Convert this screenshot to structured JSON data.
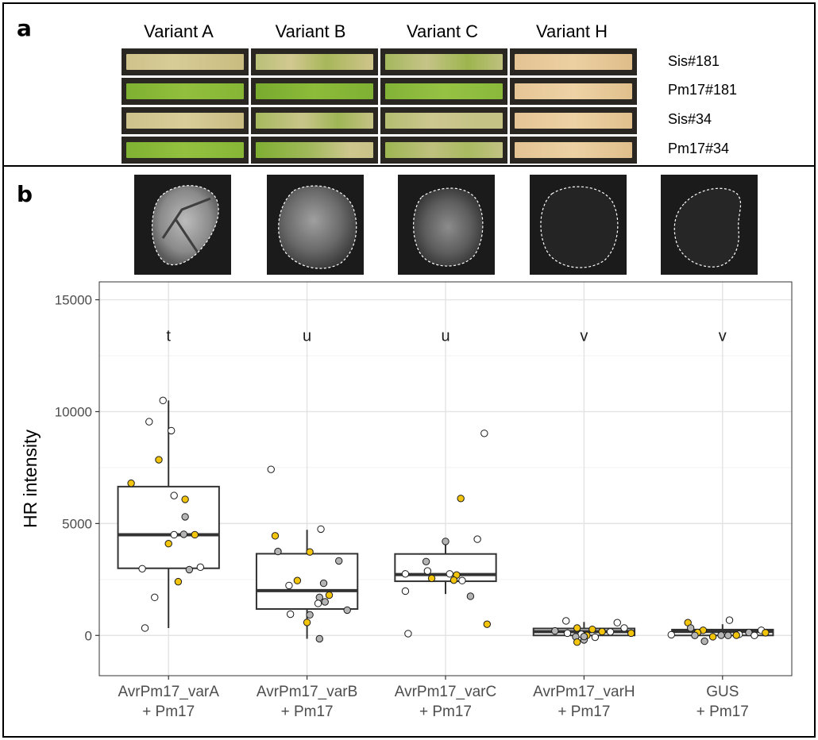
{
  "panel_a": {
    "label": "a",
    "columns": [
      "Variant A",
      "Variant B",
      "Variant C",
      "Variant H"
    ],
    "rows": [
      "Sis#181",
      "Pm17#181",
      "Sis#34",
      "Pm17#34"
    ]
  },
  "panel_b": {
    "label": "b"
  },
  "chart_data": {
    "type": "box",
    "ylabel": "HR intensity",
    "ylim": [
      -1800,
      15800
    ],
    "yticks": [
      0,
      5000,
      10000,
      15000
    ],
    "grid": true,
    "categories": [
      {
        "line1": "AvrPm17_varA",
        "line2": "+ Pm17"
      },
      {
        "line1": "AvrPm17_varB",
        "line2": "+ Pm17"
      },
      {
        "line1": "AvrPm17_varC",
        "line2": "+ Pm17"
      },
      {
        "line1": "AvrPm17_varH",
        "line2": "+ Pm17"
      },
      {
        "line1": "GUS",
        "line2": "+ Pm17"
      }
    ],
    "significance_letters": [
      "t",
      "u",
      "u",
      "v",
      "v"
    ],
    "boxes": [
      {
        "q1": 3000,
        "median": 4500,
        "q3": 6650,
        "whisker_low": 330,
        "whisker_high": 10500
      },
      {
        "q1": 1180,
        "median": 2000,
        "q3": 3650,
        "whisker_low": -150,
        "whisker_high": 4720
      },
      {
        "q1": 2420,
        "median": 2720,
        "q3": 3640,
        "whisker_low": 1850,
        "whisker_high": 4150
      },
      {
        "q1": 0,
        "median": 170,
        "q3": 310,
        "whisker_low": -300,
        "whisker_high": 600
      },
      {
        "q1": 0,
        "median": 180,
        "q3": 260,
        "whisker_low": -100,
        "whisker_high": 500
      }
    ],
    "point_colors": {
      "white": "#ffffff",
      "grey": "#b4b4b4",
      "yellow": "#f2c40c"
    },
    "points": [
      [
        {
          "dx": -0.04,
          "y": 10500,
          "c": "white"
        },
        {
          "dx": -0.14,
          "y": 9550,
          "c": "white"
        },
        {
          "dx": 0.02,
          "y": 9150,
          "c": "white"
        },
        {
          "dx": -0.07,
          "y": 7850,
          "c": "yellow"
        },
        {
          "dx": -0.27,
          "y": 6800,
          "c": "yellow"
        },
        {
          "dx": 0.04,
          "y": 6250,
          "c": "white"
        },
        {
          "dx": 0.12,
          "y": 6080,
          "c": "yellow"
        },
        {
          "dx": 0.12,
          "y": 5300,
          "c": "grey"
        },
        {
          "dx": 0.11,
          "y": 4520,
          "c": "grey"
        },
        {
          "dx": 0.04,
          "y": 4500,
          "c": "white"
        },
        {
          "dx": 0.19,
          "y": 4500,
          "c": "yellow"
        },
        {
          "dx": 0.0,
          "y": 4100,
          "c": "yellow"
        },
        {
          "dx": 0.23,
          "y": 3050,
          "c": "white"
        },
        {
          "dx": -0.19,
          "y": 2980,
          "c": "white"
        },
        {
          "dx": 0.15,
          "y": 2940,
          "c": "grey"
        },
        {
          "dx": 0.07,
          "y": 2400,
          "c": "yellow"
        },
        {
          "dx": -0.1,
          "y": 1700,
          "c": "white"
        },
        {
          "dx": -0.17,
          "y": 330,
          "c": "white"
        }
      ],
      [
        {
          "dx": -0.26,
          "y": 7420,
          "c": "white"
        },
        {
          "dx": 0.1,
          "y": 4750,
          "c": "white"
        },
        {
          "dx": -0.23,
          "y": 4450,
          "c": "yellow"
        },
        {
          "dx": -0.21,
          "y": 3750,
          "c": "grey"
        },
        {
          "dx": 0.02,
          "y": 3730,
          "c": "yellow"
        },
        {
          "dx": 0.23,
          "y": 3330,
          "c": "grey"
        },
        {
          "dx": -0.07,
          "y": 2450,
          "c": "yellow"
        },
        {
          "dx": 0.12,
          "y": 2330,
          "c": "grey"
        },
        {
          "dx": -0.13,
          "y": 2230,
          "c": "white"
        },
        {
          "dx": 0.16,
          "y": 1800,
          "c": "yellow"
        },
        {
          "dx": 0.09,
          "y": 1700,
          "c": "grey"
        },
        {
          "dx": 0.13,
          "y": 1500,
          "c": "grey"
        },
        {
          "dx": 0.08,
          "y": 1430,
          "c": "white"
        },
        {
          "dx": 0.29,
          "y": 1130,
          "c": "grey"
        },
        {
          "dx": -0.12,
          "y": 950,
          "c": "white"
        },
        {
          "dx": 0.02,
          "y": 920,
          "c": "grey"
        },
        {
          "dx": 0.0,
          "y": 580,
          "c": "yellow"
        },
        {
          "dx": 0.09,
          "y": -150,
          "c": "grey"
        }
      ],
      [
        {
          "dx": 0.28,
          "y": 9030,
          "c": "white"
        },
        {
          "dx": 0.11,
          "y": 6120,
          "c": "yellow"
        },
        {
          "dx": 0.23,
          "y": 4300,
          "c": "white"
        },
        {
          "dx": 0.0,
          "y": 4200,
          "c": "grey"
        },
        {
          "dx": -0.14,
          "y": 3300,
          "c": "grey"
        },
        {
          "dx": -0.13,
          "y": 2880,
          "c": "white"
        },
        {
          "dx": -0.29,
          "y": 2750,
          "c": "white"
        },
        {
          "dx": 0.03,
          "y": 2750,
          "c": "white"
        },
        {
          "dx": 0.08,
          "y": 2700,
          "c": "yellow"
        },
        {
          "dx": -0.1,
          "y": 2550,
          "c": "yellow"
        },
        {
          "dx": 0.06,
          "y": 2470,
          "c": "yellow"
        },
        {
          "dx": 0.12,
          "y": 2450,
          "c": "white"
        },
        {
          "dx": -0.29,
          "y": 1980,
          "c": "white"
        },
        {
          "dx": 0.18,
          "y": 1750,
          "c": "grey"
        },
        {
          "dx": 0.3,
          "y": 500,
          "c": "yellow"
        },
        {
          "dx": -0.27,
          "y": 80,
          "c": "white"
        }
      ],
      [
        {
          "dx": -0.13,
          "y": 650,
          "c": "white"
        },
        {
          "dx": 0.24,
          "y": 570,
          "c": "white"
        },
        {
          "dx": 0.29,
          "y": 330,
          "c": "white"
        },
        {
          "dx": -0.05,
          "y": 330,
          "c": "yellow"
        },
        {
          "dx": 0.06,
          "y": 270,
          "c": "yellow"
        },
        {
          "dx": -0.21,
          "y": 200,
          "c": "grey"
        },
        {
          "dx": 0.13,
          "y": 170,
          "c": "yellow"
        },
        {
          "dx": 0.19,
          "y": 160,
          "c": "white"
        },
        {
          "dx": -0.12,
          "y": 100,
          "c": "white"
        },
        {
          "dx": 0.34,
          "y": 100,
          "c": "yellow"
        },
        {
          "dx": -0.02,
          "y": 50,
          "c": "white"
        },
        {
          "dx": 0.02,
          "y": 0,
          "c": "yellow"
        },
        {
          "dx": -0.06,
          "y": -60,
          "c": "grey"
        },
        {
          "dx": 0.08,
          "y": -80,
          "c": "white"
        },
        {
          "dx": 0.0,
          "y": -200,
          "c": "grey"
        },
        {
          "dx": -0.05,
          "y": -300,
          "c": "yellow"
        },
        {
          "dx": 0.0,
          "y": -50,
          "c": "grey"
        }
      ],
      [
        {
          "dx": 0.05,
          "y": 680,
          "c": "white"
        },
        {
          "dx": -0.25,
          "y": 570,
          "c": "yellow"
        },
        {
          "dx": -0.23,
          "y": 330,
          "c": "grey"
        },
        {
          "dx": -0.14,
          "y": 230,
          "c": "yellow"
        },
        {
          "dx": 0.28,
          "y": 230,
          "c": "white"
        },
        {
          "dx": -0.18,
          "y": 130,
          "c": "yellow"
        },
        {
          "dx": 0.19,
          "y": 130,
          "c": "grey"
        },
        {
          "dx": 0.31,
          "y": 120,
          "c": "yellow"
        },
        {
          "dx": 0.12,
          "y": 50,
          "c": "white"
        },
        {
          "dx": -0.37,
          "y": 30,
          "c": "white"
        },
        {
          "dx": -0.01,
          "y": 10,
          "c": "grey"
        },
        {
          "dx": -0.2,
          "y": 0,
          "c": "grey"
        },
        {
          "dx": 0.1,
          "y": 10,
          "c": "yellow"
        },
        {
          "dx": 0.04,
          "y": 0,
          "c": "grey"
        },
        {
          "dx": -0.07,
          "y": -60,
          "c": "yellow"
        },
        {
          "dx": -0.13,
          "y": -260,
          "c": "grey"
        },
        {
          "dx": 0.23,
          "y": 0,
          "c": "white"
        }
      ]
    ]
  }
}
